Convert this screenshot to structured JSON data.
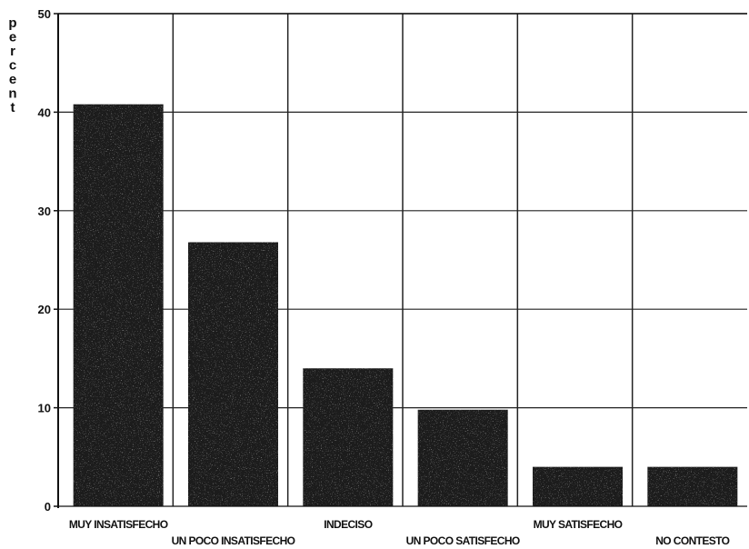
{
  "chart_data": {
    "type": "bar",
    "ylabel": "percent",
    "xlabel": "",
    "ylim": [
      0,
      50
    ],
    "yticks": [
      0,
      10,
      20,
      30,
      40,
      50
    ],
    "grid": true,
    "bar_color": "#1a1a1a",
    "categories": [
      "MUY INSATISFECHO",
      "UN POCO INSATISFECHO",
      "INDECISO",
      "UN POCO SATISFECHO",
      "MUY SATISFECHO",
      "NO CONTESTO"
    ],
    "values": [
      40.8,
      26.8,
      14.0,
      9.8,
      4.0,
      4.0
    ]
  }
}
